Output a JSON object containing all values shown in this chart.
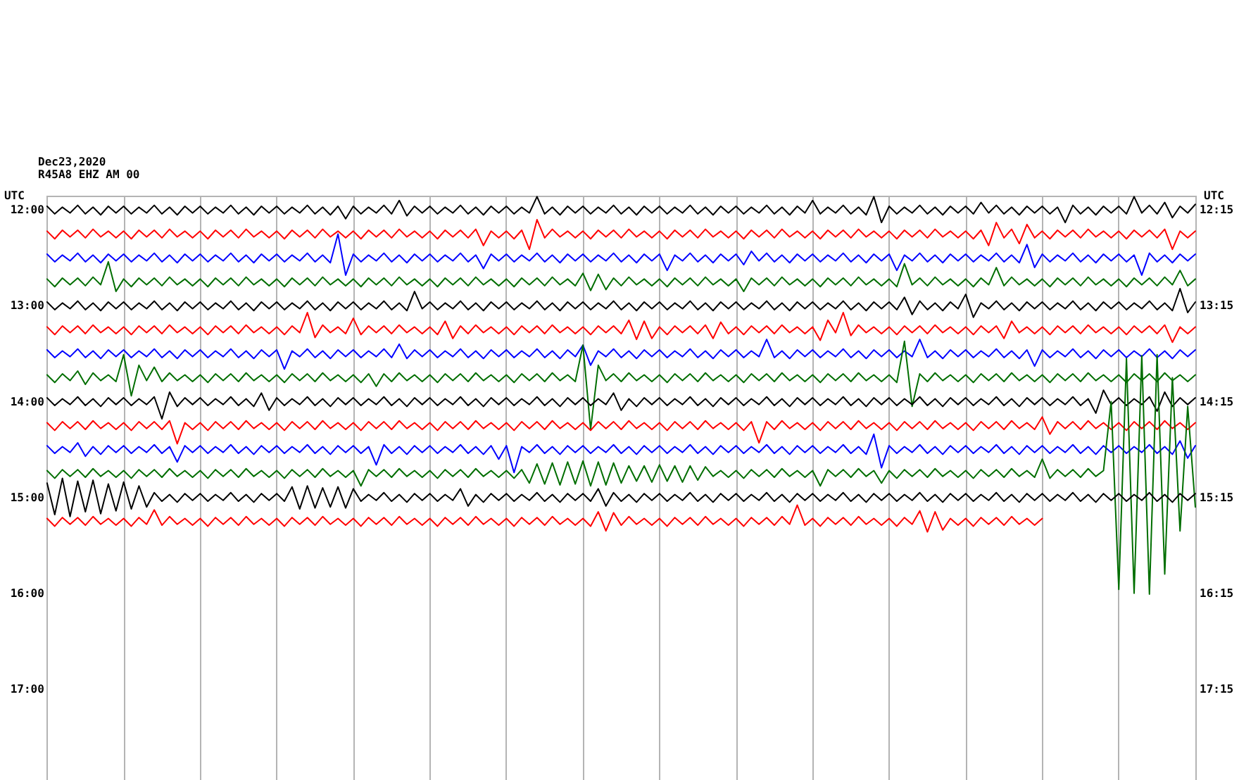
{
  "chart_data": {
    "type": "line",
    "title": "Dec23,2020",
    "subtitle": "R45A8 EHZ AM 00",
    "ylabel": "UTC",
    "y2label": "UTC",
    "grid": "x",
    "marker": "none",
    "line_style": "solid",
    "categories": [
      null,
      null,
      null,
      null,
      null,
      null,
      null,
      null,
      null,
      null,
      null,
      null,
      null,
      null,
      null,
      null,
      null,
      null,
      null,
      null,
      null,
      null,
      null,
      null,
      null,
      null,
      null,
      null,
      null,
      null,
      null,
      null,
      null,
      null,
      null,
      null,
      null,
      null,
      null,
      null,
      null,
      null,
      null,
      null,
      null,
      null,
      null,
      null,
      null,
      null,
      null,
      null,
      null,
      null,
      null,
      null,
      null,
      null,
      null,
      null,
      null,
      null,
      null,
      null,
      null,
      null,
      null,
      null,
      null,
      null,
      null,
      null,
      null,
      null,
      null,
      null,
      null,
      null,
      null,
      null,
      null,
      null,
      null,
      null,
      null,
      null,
      null,
      null,
      null,
      null,
      null,
      null,
      null,
      null,
      null,
      null,
      null,
      null,
      null,
      null,
      null,
      null,
      null,
      null,
      null,
      null,
      null,
      null,
      null,
      null,
      null,
      null,
      null,
      null,
      null,
      null,
      null,
      null,
      null,
      null,
      null,
      null,
      null,
      null,
      null,
      null,
      null,
      null,
      null,
      null,
      null,
      null,
      null,
      null,
      null,
      null,
      null,
      null,
      null,
      null,
      null,
      null,
      null,
      null,
      null,
      null,
      null,
      null,
      null,
      null,
      null
    ],
    "ylim": [
      17.95,
      11.85
    ],
    "yticks": [
      {
        "value": 12,
        "label": "12:00"
      },
      {
        "value": 13,
        "label": "13:00"
      },
      {
        "value": 14,
        "label": "14:00"
      },
      {
        "value": 15,
        "label": "15:00"
      },
      {
        "value": 16,
        "label": "16:00"
      },
      {
        "value": 17,
        "label": "17:00"
      }
    ],
    "y2lim": [
      18.2,
      12.1
    ],
    "y2ticks": [
      {
        "value": 12.25,
        "label": "12:15"
      },
      {
        "value": 13.25,
        "label": "13:15"
      },
      {
        "value": 14.25,
        "label": "14:15"
      },
      {
        "value": 15.25,
        "label": "15:15"
      },
      {
        "value": 16.25,
        "label": "16:15"
      },
      {
        "value": 17.25,
        "label": "17:15"
      }
    ],
    "series": [
      {
        "color": "#000000",
        "values": [
          11.96,
          12.04,
          11.97,
          12.03,
          11.95,
          12.04,
          11.97,
          12.05,
          11.96,
          12.03,
          11.96,
          12.04,
          11.97,
          12.03,
          11.95,
          12.04,
          11.97,
          12.05,
          11.96,
          12.03,
          11.96,
          12.04,
          11.97,
          12.03,
          11.95,
          12.04,
          11.97,
          12.05,
          11.96,
          12.03,
          11.96,
          12.04,
          11.97,
          12.03,
          11.95,
          12.04,
          11.97,
          12.05,
          11.96,
          12.09,
          11.96,
          12.04,
          11.97,
          12.03,
          11.95,
          12.04,
          11.9,
          12.06,
          11.96,
          12.03,
          11.96,
          12.04,
          11.97,
          12.03,
          11.95,
          12.04,
          11.97,
          12.05,
          11.96,
          12.03,
          11.96,
          12.04,
          11.97,
          12.03,
          11.86,
          12.04,
          11.97,
          12.05,
          11.96,
          12.03,
          11.96,
          12.04,
          11.97,
          12.03,
          11.95,
          12.04,
          11.97,
          12.05,
          11.96,
          12.03,
          11.96,
          12.04,
          11.97,
          12.03,
          11.95,
          12.04,
          11.97,
          12.05,
          11.96,
          12.03,
          11.96,
          12.04,
          11.97,
          12.03,
          11.95,
          12.04,
          11.97,
          12.05,
          11.96,
          12.03,
          11.9,
          12.04,
          11.97,
          12.03,
          11.95,
          12.04,
          11.97,
          12.05,
          11.86,
          12.13,
          11.96,
          12.04,
          11.97,
          12.03,
          11.95,
          12.04,
          11.97,
          12.05,
          11.96,
          12.03,
          11.96,
          12.04,
          11.92,
          12.03,
          11.95,
          12.04,
          11.97,
          12.05,
          11.96,
          12.03,
          11.96,
          12.04,
          11.97,
          12.13,
          11.95,
          12.04,
          11.97,
          12.05,
          11.96,
          12.03,
          11.96,
          12.04,
          11.86,
          12.03,
          11.95,
          12.04,
          11.92,
          12.08,
          11.96,
          12.03,
          11.94
        ]
      },
      {
        "color": "#ff0000",
        "values": [
          12.22,
          12.3,
          12.21,
          12.28,
          12.21,
          12.29,
          12.2,
          12.28,
          12.22,
          12.29,
          12.22,
          12.3,
          12.21,
          12.28,
          12.21,
          12.29,
          12.2,
          12.28,
          12.22,
          12.29,
          12.22,
          12.3,
          12.21,
          12.28,
          12.21,
          12.29,
          12.2,
          12.28,
          12.22,
          12.29,
          12.22,
          12.3,
          12.21,
          12.28,
          12.21,
          12.29,
          12.2,
          12.28,
          12.22,
          12.29,
          12.22,
          12.3,
          12.21,
          12.28,
          12.21,
          12.29,
          12.2,
          12.28,
          12.22,
          12.29,
          12.22,
          12.3,
          12.21,
          12.28,
          12.21,
          12.29,
          12.2,
          12.37,
          12.22,
          12.29,
          12.22,
          12.3,
          12.21,
          12.41,
          12.1,
          12.29,
          12.2,
          12.28,
          12.22,
          12.29,
          12.22,
          12.3,
          12.21,
          12.28,
          12.21,
          12.29,
          12.2,
          12.28,
          12.22,
          12.29,
          12.22,
          12.3,
          12.21,
          12.28,
          12.21,
          12.29,
          12.2,
          12.28,
          12.22,
          12.29,
          12.22,
          12.3,
          12.21,
          12.28,
          12.21,
          12.29,
          12.2,
          12.28,
          12.22,
          12.29,
          12.22,
          12.3,
          12.21,
          12.28,
          12.21,
          12.29,
          12.2,
          12.28,
          12.22,
          12.29,
          12.22,
          12.3,
          12.21,
          12.28,
          12.21,
          12.29,
          12.2,
          12.28,
          12.22,
          12.29,
          12.22,
          12.3,
          12.21,
          12.37,
          12.13,
          12.29,
          12.2,
          12.35,
          12.15,
          12.29,
          12.22,
          12.3,
          12.21,
          12.28,
          12.21,
          12.29,
          12.2,
          12.28,
          12.22,
          12.29,
          12.22,
          12.3,
          12.21,
          12.28,
          12.21,
          12.29,
          12.2,
          12.41,
          12.22,
          12.29,
          12.22
        ]
      },
      {
        "color": "#0000ff",
        "values": [
          12.46,
          12.54,
          12.47,
          12.53,
          12.45,
          12.54,
          12.47,
          12.55,
          12.46,
          12.53,
          12.46,
          12.54,
          12.47,
          12.53,
          12.45,
          12.54,
          12.47,
          12.55,
          12.46,
          12.53,
          12.46,
          12.54,
          12.47,
          12.53,
          12.45,
          12.54,
          12.47,
          12.55,
          12.46,
          12.53,
          12.46,
          12.54,
          12.47,
          12.53,
          12.45,
          12.54,
          12.47,
          12.55,
          12.25,
          12.68,
          12.46,
          12.54,
          12.47,
          12.53,
          12.45,
          12.54,
          12.47,
          12.55,
          12.46,
          12.53,
          12.46,
          12.54,
          12.47,
          12.53,
          12.45,
          12.54,
          12.47,
          12.61,
          12.46,
          12.53,
          12.46,
          12.54,
          12.47,
          12.53,
          12.45,
          12.54,
          12.47,
          12.55,
          12.46,
          12.53,
          12.46,
          12.54,
          12.47,
          12.53,
          12.45,
          12.54,
          12.47,
          12.55,
          12.46,
          12.53,
          12.46,
          12.63,
          12.47,
          12.53,
          12.45,
          12.54,
          12.47,
          12.55,
          12.46,
          12.53,
          12.46,
          12.57,
          12.43,
          12.53,
          12.45,
          12.54,
          12.47,
          12.55,
          12.46,
          12.53,
          12.46,
          12.54,
          12.47,
          12.53,
          12.45,
          12.54,
          12.47,
          12.55,
          12.46,
          12.53,
          12.46,
          12.63,
          12.47,
          12.53,
          12.45,
          12.54,
          12.47,
          12.55,
          12.46,
          12.53,
          12.46,
          12.54,
          12.47,
          12.53,
          12.45,
          12.54,
          12.47,
          12.55,
          12.36,
          12.6,
          12.46,
          12.54,
          12.47,
          12.53,
          12.45,
          12.54,
          12.47,
          12.55,
          12.46,
          12.53,
          12.46,
          12.54,
          12.47,
          12.68,
          12.45,
          12.54,
          12.47,
          12.55,
          12.46,
          12.53,
          12.46
        ]
      },
      {
        "color": "#006e00",
        "values": [
          12.72,
          12.8,
          12.71,
          12.78,
          12.71,
          12.79,
          12.7,
          12.78,
          12.54,
          12.85,
          12.72,
          12.8,
          12.71,
          12.78,
          12.71,
          12.79,
          12.7,
          12.78,
          12.72,
          12.79,
          12.72,
          12.8,
          12.71,
          12.78,
          12.71,
          12.79,
          12.7,
          12.78,
          12.72,
          12.79,
          12.72,
          12.8,
          12.71,
          12.78,
          12.71,
          12.79,
          12.7,
          12.78,
          12.72,
          12.79,
          12.72,
          12.8,
          12.71,
          12.78,
          12.71,
          12.79,
          12.7,
          12.78,
          12.72,
          12.79,
          12.72,
          12.8,
          12.71,
          12.78,
          12.71,
          12.79,
          12.7,
          12.78,
          12.72,
          12.79,
          12.72,
          12.8,
          12.71,
          12.78,
          12.71,
          12.79,
          12.7,
          12.78,
          12.72,
          12.79,
          12.66,
          12.84,
          12.67,
          12.83,
          12.71,
          12.79,
          12.7,
          12.78,
          12.72,
          12.79,
          12.72,
          12.8,
          12.71,
          12.78,
          12.71,
          12.79,
          12.7,
          12.78,
          12.72,
          12.79,
          12.72,
          12.85,
          12.71,
          12.78,
          12.71,
          12.79,
          12.7,
          12.78,
          12.72,
          12.79,
          12.72,
          12.8,
          12.71,
          12.78,
          12.71,
          12.79,
          12.7,
          12.78,
          12.72,
          12.79,
          12.72,
          12.8,
          12.56,
          12.78,
          12.71,
          12.79,
          12.7,
          12.78,
          12.72,
          12.79,
          12.72,
          12.8,
          12.71,
          12.78,
          12.6,
          12.79,
          12.7,
          12.78,
          12.72,
          12.79,
          12.72,
          12.8,
          12.71,
          12.78,
          12.71,
          12.79,
          12.7,
          12.78,
          12.72,
          12.79,
          12.72,
          12.8,
          12.71,
          12.78,
          12.71,
          12.79,
          12.7,
          12.78,
          12.63,
          12.79,
          12.72
        ]
      },
      {
        "color": "#000000",
        "values": [
          12.96,
          13.04,
          12.97,
          13.03,
          12.95,
          13.04,
          12.97,
          13.05,
          12.96,
          13.03,
          12.96,
          13.04,
          12.97,
          13.03,
          12.95,
          13.04,
          12.97,
          13.05,
          12.96,
          13.03,
          12.96,
          13.04,
          12.97,
          13.03,
          12.95,
          13.04,
          12.97,
          13.05,
          12.96,
          13.03,
          12.96,
          13.04,
          12.97,
          13.03,
          12.95,
          13.04,
          12.97,
          13.05,
          12.96,
          13.03,
          12.96,
          13.04,
          12.97,
          13.03,
          12.95,
          13.04,
          12.97,
          13.05,
          12.85,
          13.03,
          12.96,
          13.04,
          12.97,
          13.03,
          12.95,
          13.04,
          12.97,
          13.05,
          12.96,
          13.03,
          12.96,
          13.04,
          12.97,
          13.03,
          12.95,
          13.04,
          12.97,
          13.05,
          12.96,
          13.03,
          12.96,
          13.04,
          12.97,
          13.03,
          12.95,
          13.04,
          12.97,
          13.05,
          12.96,
          13.03,
          12.96,
          13.04,
          12.97,
          13.03,
          12.95,
          13.04,
          12.97,
          13.05,
          12.96,
          13.03,
          12.96,
          13.04,
          12.97,
          13.03,
          12.95,
          13.04,
          12.97,
          13.05,
          12.96,
          13.03,
          12.96,
          13.04,
          12.97,
          13.03,
          12.95,
          13.04,
          12.97,
          13.05,
          12.96,
          13.03,
          12.96,
          13.04,
          12.91,
          13.09,
          12.95,
          13.04,
          12.97,
          13.05,
          12.96,
          13.03,
          12.88,
          13.12,
          12.97,
          13.03,
          12.95,
          13.04,
          12.97,
          13.05,
          12.96,
          13.03,
          12.96,
          13.04,
          12.97,
          13.03,
          12.95,
          13.04,
          12.97,
          13.05,
          12.96,
          13.03,
          12.96,
          13.04,
          12.97,
          13.03,
          12.95,
          13.04,
          12.97,
          13.05,
          12.82,
          13.07,
          12.96
        ]
      },
      {
        "color": "#ff0000",
        "values": [
          13.22,
          13.3,
          13.21,
          13.28,
          13.21,
          13.29,
          13.2,
          13.28,
          13.22,
          13.29,
          13.22,
          13.3,
          13.21,
          13.28,
          13.21,
          13.29,
          13.2,
          13.28,
          13.22,
          13.29,
          13.22,
          13.3,
          13.21,
          13.28,
          13.21,
          13.29,
          13.2,
          13.28,
          13.22,
          13.29,
          13.22,
          13.3,
          13.21,
          13.28,
          13.07,
          13.33,
          13.2,
          13.28,
          13.22,
          13.29,
          13.13,
          13.3,
          13.21,
          13.28,
          13.21,
          13.29,
          13.2,
          13.28,
          13.22,
          13.29,
          13.22,
          13.3,
          13.16,
          13.34,
          13.21,
          13.29,
          13.2,
          13.28,
          13.22,
          13.29,
          13.22,
          13.3,
          13.21,
          13.28,
          13.21,
          13.29,
          13.2,
          13.28,
          13.22,
          13.29,
          13.22,
          13.3,
          13.21,
          13.28,
          13.21,
          13.29,
          13.15,
          13.35,
          13.16,
          13.34,
          13.22,
          13.3,
          13.21,
          13.28,
          13.21,
          13.29,
          13.2,
          13.34,
          13.17,
          13.29,
          13.22,
          13.3,
          13.21,
          13.28,
          13.21,
          13.29,
          13.2,
          13.28,
          13.22,
          13.29,
          13.22,
          13.36,
          13.15,
          13.28,
          13.07,
          13.31,
          13.2,
          13.28,
          13.22,
          13.29,
          13.22,
          13.3,
          13.21,
          13.28,
          13.21,
          13.29,
          13.2,
          13.28,
          13.22,
          13.29,
          13.22,
          13.3,
          13.21,
          13.28,
          13.21,
          13.34,
          13.16,
          13.28,
          13.22,
          13.29,
          13.22,
          13.3,
          13.21,
          13.28,
          13.21,
          13.29,
          13.2,
          13.28,
          13.22,
          13.29,
          13.22,
          13.3,
          13.21,
          13.28,
          13.21,
          13.29,
          13.2,
          13.38,
          13.22,
          13.29,
          13.22
        ]
      },
      {
        "color": "#0000ff",
        "values": [
          13.46,
          13.54,
          13.47,
          13.53,
          13.45,
          13.54,
          13.47,
          13.55,
          13.46,
          13.53,
          13.46,
          13.54,
          13.47,
          13.53,
          13.45,
          13.54,
          13.47,
          13.55,
          13.46,
          13.53,
          13.46,
          13.54,
          13.47,
          13.53,
          13.45,
          13.54,
          13.47,
          13.55,
          13.46,
          13.53,
          13.46,
          13.66,
          13.47,
          13.53,
          13.45,
          13.54,
          13.47,
          13.55,
          13.46,
          13.53,
          13.46,
          13.54,
          13.47,
          13.53,
          13.45,
          13.54,
          13.4,
          13.55,
          13.46,
          13.53,
          13.46,
          13.54,
          13.47,
          13.53,
          13.45,
          13.54,
          13.47,
          13.55,
          13.46,
          13.53,
          13.46,
          13.54,
          13.47,
          13.53,
          13.45,
          13.54,
          13.47,
          13.55,
          13.46,
          13.53,
          13.41,
          13.62,
          13.47,
          13.53,
          13.45,
          13.54,
          13.47,
          13.55,
          13.46,
          13.53,
          13.46,
          13.54,
          13.47,
          13.53,
          13.45,
          13.54,
          13.47,
          13.55,
          13.46,
          13.53,
          13.46,
          13.54,
          13.47,
          13.53,
          13.35,
          13.54,
          13.47,
          13.55,
          13.46,
          13.53,
          13.46,
          13.54,
          13.47,
          13.53,
          13.45,
          13.54,
          13.47,
          13.55,
          13.46,
          13.53,
          13.46,
          13.54,
          13.47,
          13.53,
          13.35,
          13.54,
          13.47,
          13.55,
          13.46,
          13.53,
          13.46,
          13.54,
          13.47,
          13.53,
          13.45,
          13.54,
          13.47,
          13.55,
          13.46,
          13.63,
          13.46,
          13.54,
          13.47,
          13.53,
          13.45,
          13.54,
          13.47,
          13.55,
          13.46,
          13.53,
          13.46,
          13.54,
          13.47,
          13.53,
          13.45,
          13.54,
          13.47,
          13.55,
          13.46,
          13.53,
          13.46
        ]
      },
      {
        "color": "#006e00",
        "values": [
          13.72,
          13.8,
          13.71,
          13.78,
          13.68,
          13.82,
          13.7,
          13.78,
          13.72,
          13.79,
          13.51,
          13.94,
          13.62,
          13.78,
          13.64,
          13.79,
          13.7,
          13.78,
          13.72,
          13.79,
          13.72,
          13.8,
          13.71,
          13.78,
          13.71,
          13.79,
          13.7,
          13.78,
          13.72,
          13.79,
          13.72,
          13.8,
          13.71,
          13.78,
          13.71,
          13.79,
          13.7,
          13.78,
          13.72,
          13.79,
          13.72,
          13.8,
          13.71,
          13.84,
          13.71,
          13.79,
          13.7,
          13.78,
          13.72,
          13.79,
          13.72,
          13.8,
          13.71,
          13.78,
          13.71,
          13.79,
          13.7,
          13.78,
          13.72,
          13.79,
          13.72,
          13.8,
          13.71,
          13.78,
          13.71,
          13.79,
          13.7,
          13.78,
          13.72,
          13.79,
          13.41,
          14.29,
          13.62,
          13.78,
          13.71,
          13.79,
          13.7,
          13.78,
          13.72,
          13.79,
          13.72,
          13.8,
          13.71,
          13.78,
          13.71,
          13.79,
          13.7,
          13.78,
          13.72,
          13.79,
          13.72,
          13.8,
          13.71,
          13.78,
          13.71,
          13.79,
          13.7,
          13.78,
          13.72,
          13.79,
          13.72,
          13.8,
          13.71,
          13.78,
          13.71,
          13.79,
          13.7,
          13.78,
          13.72,
          13.79,
          13.72,
          13.8,
          13.37,
          14.05,
          13.71,
          13.79,
          13.7,
          13.78,
          13.72,
          13.79,
          13.72,
          13.8,
          13.71,
          13.78,
          13.71,
          13.79,
          13.7,
          13.78,
          13.72,
          13.79,
          13.72,
          13.8,
          13.71,
          13.78,
          13.71,
          13.79,
          13.7,
          13.78,
          13.72,
          13.79,
          13.72,
          13.8,
          13.71,
          13.78,
          13.71,
          13.79,
          13.7,
          13.78,
          13.72,
          13.79,
          13.72
        ]
      },
      {
        "color": "#000000",
        "values": [
          13.96,
          14.04,
          13.97,
          14.03,
          13.95,
          14.04,
          13.97,
          14.05,
          13.96,
          14.03,
          13.96,
          14.04,
          13.97,
          14.03,
          13.95,
          14.18,
          13.9,
          14.05,
          13.96,
          14.03,
          13.96,
          14.04,
          13.97,
          14.03,
          13.95,
          14.04,
          13.97,
          14.05,
          13.91,
          14.09,
          13.96,
          14.04,
          13.97,
          14.03,
          13.95,
          14.04,
          13.97,
          14.05,
          13.96,
          14.03,
          13.96,
          14.04,
          13.97,
          14.03,
          13.95,
          14.04,
          13.97,
          14.05,
          13.96,
          14.03,
          13.96,
          14.04,
          13.97,
          14.03,
          13.95,
          14.04,
          13.97,
          14.05,
          13.96,
          14.03,
          13.96,
          14.04,
          13.97,
          14.03,
          13.95,
          14.04,
          13.97,
          14.05,
          13.96,
          14.03,
          13.96,
          14.04,
          13.97,
          14.03,
          13.91,
          14.09,
          13.97,
          14.05,
          13.96,
          14.03,
          13.96,
          14.04,
          13.97,
          14.03,
          13.95,
          14.04,
          13.97,
          14.05,
          13.96,
          14.03,
          13.96,
          14.04,
          13.97,
          14.03,
          13.95,
          14.04,
          13.97,
          14.05,
          13.96,
          14.03,
          13.96,
          14.04,
          13.97,
          14.03,
          13.95,
          14.04,
          13.97,
          14.05,
          13.96,
          14.03,
          13.96,
          14.04,
          13.97,
          14.03,
          13.95,
          14.04,
          13.97,
          14.05,
          13.96,
          14.03,
          13.96,
          14.04,
          13.97,
          14.03,
          13.95,
          14.04,
          13.97,
          14.05,
          13.96,
          14.03,
          13.96,
          14.04,
          13.97,
          14.03,
          13.95,
          14.04,
          13.97,
          14.12,
          13.88,
          14.03,
          13.96,
          14.04,
          13.97,
          14.03,
          13.95,
          14.1,
          13.9,
          14.05,
          13.96,
          14.03,
          13.96
        ]
      },
      {
        "color": "#ff0000",
        "values": [
          14.22,
          14.3,
          14.21,
          14.28,
          14.21,
          14.29,
          14.2,
          14.28,
          14.22,
          14.29,
          14.22,
          14.3,
          14.21,
          14.28,
          14.21,
          14.29,
          14.2,
          14.44,
          14.22,
          14.29,
          14.22,
          14.3,
          14.21,
          14.28,
          14.21,
          14.29,
          14.2,
          14.28,
          14.22,
          14.29,
          14.22,
          14.3,
          14.21,
          14.28,
          14.21,
          14.29,
          14.2,
          14.28,
          14.22,
          14.29,
          14.22,
          14.3,
          14.21,
          14.28,
          14.21,
          14.29,
          14.2,
          14.28,
          14.22,
          14.29,
          14.22,
          14.3,
          14.21,
          14.28,
          14.21,
          14.29,
          14.2,
          14.28,
          14.22,
          14.29,
          14.22,
          14.3,
          14.21,
          14.28,
          14.21,
          14.29,
          14.2,
          14.28,
          14.22,
          14.29,
          14.22,
          14.3,
          14.21,
          14.28,
          14.21,
          14.29,
          14.2,
          14.28,
          14.22,
          14.29,
          14.22,
          14.3,
          14.21,
          14.28,
          14.21,
          14.29,
          14.2,
          14.28,
          14.22,
          14.29,
          14.22,
          14.3,
          14.21,
          14.43,
          14.21,
          14.29,
          14.2,
          14.28,
          14.22,
          14.29,
          14.22,
          14.3,
          14.21,
          14.28,
          14.21,
          14.29,
          14.2,
          14.28,
          14.22,
          14.29,
          14.22,
          14.3,
          14.21,
          14.28,
          14.21,
          14.29,
          14.2,
          14.28,
          14.22,
          14.29,
          14.22,
          14.3,
          14.21,
          14.28,
          14.21,
          14.29,
          14.2,
          14.28,
          14.22,
          14.29,
          14.16,
          14.34,
          14.21,
          14.28,
          14.21,
          14.29,
          14.2,
          14.28,
          14.22,
          14.29,
          14.22,
          14.3,
          14.21,
          14.28,
          14.21,
          14.29,
          14.2,
          14.28,
          14.22,
          14.29,
          14.22
        ]
      },
      {
        "color": "#0000ff",
        "values": [
          14.46,
          14.54,
          14.47,
          14.53,
          14.43,
          14.57,
          14.47,
          14.55,
          14.46,
          14.53,
          14.46,
          14.54,
          14.47,
          14.53,
          14.45,
          14.54,
          14.47,
          14.63,
          14.46,
          14.53,
          14.46,
          14.54,
          14.47,
          14.53,
          14.45,
          14.54,
          14.47,
          14.55,
          14.46,
          14.53,
          14.46,
          14.54,
          14.47,
          14.53,
          14.45,
          14.54,
          14.47,
          14.55,
          14.46,
          14.53,
          14.46,
          14.54,
          14.47,
          14.66,
          14.45,
          14.54,
          14.47,
          14.55,
          14.46,
          14.53,
          14.46,
          14.54,
          14.47,
          14.53,
          14.45,
          14.54,
          14.47,
          14.55,
          14.46,
          14.6,
          14.46,
          14.74,
          14.47,
          14.53,
          14.45,
          14.54,
          14.47,
          14.55,
          14.46,
          14.53,
          14.46,
          14.54,
          14.47,
          14.53,
          14.45,
          14.54,
          14.47,
          14.55,
          14.46,
          14.53,
          14.46,
          14.54,
          14.47,
          14.53,
          14.45,
          14.54,
          14.47,
          14.55,
          14.46,
          14.53,
          14.46,
          14.54,
          14.47,
          14.53,
          14.45,
          14.54,
          14.47,
          14.55,
          14.46,
          14.53,
          14.46,
          14.54,
          14.47,
          14.53,
          14.45,
          14.54,
          14.47,
          14.55,
          14.34,
          14.69,
          14.46,
          14.54,
          14.47,
          14.53,
          14.45,
          14.54,
          14.47,
          14.55,
          14.46,
          14.53,
          14.46,
          14.54,
          14.47,
          14.53,
          14.45,
          14.54,
          14.47,
          14.55,
          14.46,
          14.53,
          14.46,
          14.54,
          14.47,
          14.53,
          14.45,
          14.54,
          14.47,
          14.55,
          14.46,
          14.53,
          14.46,
          14.54,
          14.47,
          14.53,
          14.45,
          14.54,
          14.47,
          14.55,
          14.41,
          14.59,
          14.46
        ]
      },
      {
        "color": "#006e00",
        "values": [
          14.72,
          14.8,
          14.71,
          14.78,
          14.71,
          14.79,
          14.7,
          14.78,
          14.72,
          14.79,
          14.72,
          14.8,
          14.71,
          14.78,
          14.71,
          14.79,
          14.7,
          14.78,
          14.72,
          14.79,
          14.72,
          14.8,
          14.71,
          14.78,
          14.71,
          14.79,
          14.7,
          14.78,
          14.72,
          14.79,
          14.72,
          14.8,
          14.71,
          14.78,
          14.71,
          14.79,
          14.7,
          14.78,
          14.72,
          14.79,
          14.72,
          14.88,
          14.71,
          14.78,
          14.71,
          14.79,
          14.7,
          14.78,
          14.72,
          14.79,
          14.72,
          14.8,
          14.71,
          14.78,
          14.71,
          14.79,
          14.7,
          14.78,
          14.72,
          14.79,
          14.72,
          14.8,
          14.71,
          14.85,
          14.65,
          14.86,
          14.64,
          14.87,
          14.63,
          14.86,
          14.62,
          14.88,
          14.63,
          14.87,
          14.64,
          14.85,
          14.67,
          14.83,
          14.67,
          14.84,
          14.66,
          14.83,
          14.67,
          14.84,
          14.67,
          14.82,
          14.68,
          14.78,
          14.72,
          14.79,
          14.72,
          14.8,
          14.71,
          14.78,
          14.71,
          14.79,
          14.7,
          14.78,
          14.72,
          14.79,
          14.72,
          14.88,
          14.71,
          14.78,
          14.71,
          14.79,
          14.7,
          14.78,
          14.72,
          14.85,
          14.72,
          14.8,
          14.71,
          14.78,
          14.71,
          14.79,
          14.7,
          14.78,
          14.72,
          14.79,
          14.72,
          14.8,
          14.71,
          14.78,
          14.71,
          14.79,
          14.7,
          14.78,
          14.72,
          14.79,
          14.6,
          14.8,
          14.71,
          14.78,
          14.71,
          14.79,
          14.7,
          14.78,
          14.72,
          14.0,
          15.96,
          13.55,
          16.0,
          13.52,
          16.01,
          13.51,
          15.8,
          13.75,
          15.35,
          14.05,
          15.1
        ]
      },
      {
        "color": "#000000",
        "values": [
          14.85,
          15.18,
          14.8,
          15.2,
          14.83,
          15.15,
          14.82,
          15.17,
          14.86,
          15.14,
          14.84,
          15.12,
          14.88,
          15.1,
          14.95,
          15.04,
          14.97,
          15.05,
          14.96,
          15.03,
          14.96,
          15.04,
          14.97,
          15.03,
          14.95,
          15.04,
          14.97,
          15.05,
          14.96,
          15.03,
          14.96,
          15.04,
          14.89,
          15.12,
          14.88,
          15.11,
          14.9,
          15.1,
          14.89,
          15.11,
          14.91,
          15.04,
          14.97,
          15.03,
          14.95,
          15.04,
          14.97,
          15.05,
          14.96,
          15.03,
          14.96,
          15.04,
          14.97,
          15.03,
          14.91,
          15.09,
          14.97,
          15.05,
          14.96,
          15.03,
          14.96,
          15.04,
          14.97,
          15.03,
          14.95,
          15.04,
          14.97,
          15.05,
          14.96,
          15.03,
          14.96,
          15.04,
          14.91,
          15.09,
          14.95,
          15.04,
          14.97,
          15.05,
          14.96,
          15.03,
          14.96,
          15.04,
          14.97,
          15.03,
          14.95,
          15.04,
          14.97,
          15.05,
          14.96,
          15.03,
          14.96,
          15.04,
          14.97,
          15.03,
          14.95,
          15.04,
          14.97,
          15.05,
          14.96,
          15.03,
          14.96,
          15.04,
          14.97,
          15.03,
          14.95,
          15.04,
          14.97,
          15.05,
          14.96,
          15.03,
          14.96,
          15.04,
          14.97,
          15.03,
          14.95,
          15.04,
          14.97,
          15.05,
          14.96,
          15.03,
          14.96,
          15.04,
          14.97,
          15.03,
          14.95,
          15.04,
          14.97,
          15.05,
          14.96,
          15.03,
          14.96,
          15.04,
          14.97,
          15.03,
          14.95,
          15.04,
          14.97,
          15.05,
          14.96,
          15.03,
          14.96,
          15.04,
          14.97,
          15.03,
          14.95,
          15.04,
          14.97,
          15.05,
          14.96,
          15.03,
          14.96
        ]
      },
      {
        "color": "#ff0000",
        "values": [
          15.22,
          15.3,
          15.21,
          15.28,
          15.21,
          15.29,
          15.2,
          15.28,
          15.22,
          15.29,
          15.22,
          15.3,
          15.21,
          15.28,
          15.13,
          15.29,
          15.2,
          15.28,
          15.22,
          15.29,
          15.22,
          15.3,
          15.21,
          15.28,
          15.21,
          15.29,
          15.2,
          15.28,
          15.22,
          15.29,
          15.22,
          15.3,
          15.21,
          15.28,
          15.21,
          15.29,
          15.2,
          15.28,
          15.22,
          15.29,
          15.22,
          15.3,
          15.21,
          15.28,
          15.21,
          15.29,
          15.2,
          15.28,
          15.22,
          15.29,
          15.22,
          15.3,
          15.21,
          15.28,
          15.21,
          15.29,
          15.2,
          15.28,
          15.22,
          15.29,
          15.22,
          15.3,
          15.21,
          15.28,
          15.21,
          15.29,
          15.2,
          15.28,
          15.22,
          15.29,
          15.22,
          15.3,
          15.15,
          15.35,
          15.16,
          15.29,
          15.2,
          15.28,
          15.22,
          15.29,
          15.22,
          15.3,
          15.21,
          15.28,
          15.21,
          15.29,
          15.2,
          15.28,
          15.22,
          15.29,
          15.22,
          15.3,
          15.21,
          15.28,
          15.21,
          15.29,
          15.2,
          15.28,
          15.08,
          15.29,
          15.22,
          15.3,
          15.21,
          15.28,
          15.21,
          15.29,
          15.2,
          15.28,
          15.22,
          15.29,
          15.22,
          15.3,
          15.21,
          15.28,
          15.14,
          15.36,
          15.15,
          15.34,
          15.22,
          15.29,
          15.22,
          15.3,
          15.21,
          15.28,
          15.21,
          15.29,
          15.2,
          15.28,
          15.22,
          15.29,
          15.22,
          null,
          null,
          null,
          null,
          null,
          null,
          null,
          null,
          null,
          null,
          null,
          null,
          null,
          null,
          null,
          null,
          null,
          null,
          null,
          null
        ]
      }
    ]
  }
}
